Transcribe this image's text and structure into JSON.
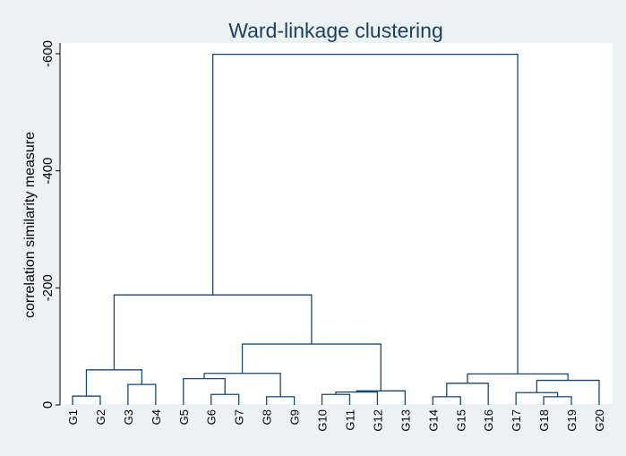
{
  "chart_data": {
    "type": "dendrogram",
    "title": "Ward-linkage clustering",
    "ylabel": "correlation similarity measure",
    "xlabel": "",
    "y_ticks": [
      0,
      -200,
      -400,
      -600
    ],
    "y_tick_labels": [
      "0",
      "-200",
      "-400",
      "-600"
    ],
    "ylim": [
      0,
      -615
    ],
    "grid": false,
    "leaves": [
      "G1",
      "G2",
      "G3",
      "G4",
      "G5",
      "G6",
      "G7",
      "G8",
      "G9",
      "G10",
      "G11",
      "G12",
      "G13",
      "G14",
      "G15",
      "G16",
      "G17",
      "G18",
      "G19",
      "G20"
    ],
    "merges": [
      {
        "id": "A1",
        "left": "G1",
        "right": "G2",
        "height": -15
      },
      {
        "id": "A2",
        "left": "G3",
        "right": "G4",
        "height": -35
      },
      {
        "id": "A3",
        "left": "A1",
        "right": "A2",
        "height": -60
      },
      {
        "id": "B1",
        "left": "G6",
        "right": "G7",
        "height": -18
      },
      {
        "id": "B2",
        "left": "G5",
        "right": "B1",
        "height": -45
      },
      {
        "id": "B3",
        "left": "G8",
        "right": "G9",
        "height": -14
      },
      {
        "id": "B4",
        "left": "B2",
        "right": "B3",
        "height": -54
      },
      {
        "id": "C1",
        "left": "G10",
        "right": "G11",
        "height": -18
      },
      {
        "id": "C2",
        "left": "C1",
        "right": "G12",
        "height": -22
      },
      {
        "id": "C3",
        "left": "C2",
        "right": "G13",
        "height": -24
      },
      {
        "id": "BC",
        "left": "B4",
        "right": "C3",
        "height": -104
      },
      {
        "id": "ABC",
        "left": "A3",
        "right": "BC",
        "height": -188
      },
      {
        "id": "D1",
        "left": "G14",
        "right": "G15",
        "height": -14
      },
      {
        "id": "D2",
        "left": "D1",
        "right": "G16",
        "height": -37
      },
      {
        "id": "E1",
        "left": "G18",
        "right": "G19",
        "height": -14
      },
      {
        "id": "E2",
        "left": "G17",
        "right": "E1",
        "height": -21
      },
      {
        "id": "E3",
        "left": "E2",
        "right": "G20",
        "height": -42
      },
      {
        "id": "DE",
        "left": "D2",
        "right": "E3",
        "height": -53
      },
      {
        "id": "ROOT",
        "left": "ABC",
        "right": "DE",
        "height": -599
      }
    ]
  }
}
